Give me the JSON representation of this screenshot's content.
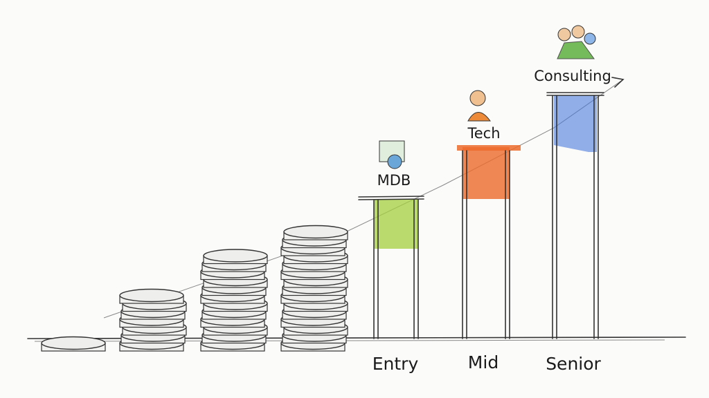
{
  "levels": [
    {
      "label": "Entry",
      "tag": "MDB"
    },
    {
      "label": "Mid",
      "tag": "Tech"
    },
    {
      "label": "Senior",
      "tag": "Consulting"
    }
  ]
}
